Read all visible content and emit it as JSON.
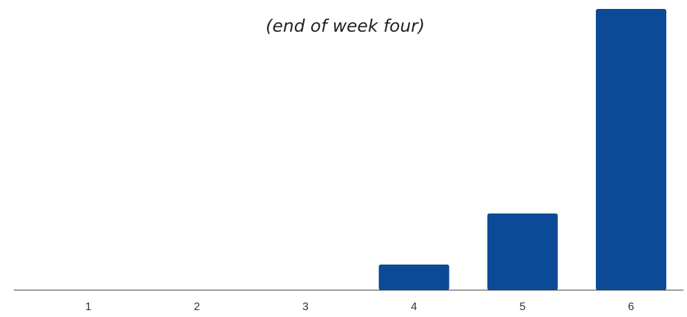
{
  "chart_data": {
    "type": "bar",
    "title": "",
    "subtitle": "(end of week four)",
    "xlabel": "",
    "ylabel": "",
    "categories": [
      "1",
      "2",
      "3",
      "4",
      "5",
      "6"
    ],
    "values": [
      0,
      0,
      0,
      1,
      3,
      11
    ],
    "ylim": [
      0,
      11
    ],
    "grid": false,
    "legend": "none",
    "bar_color": "#0b4a96",
    "axis_color": "#333333"
  }
}
